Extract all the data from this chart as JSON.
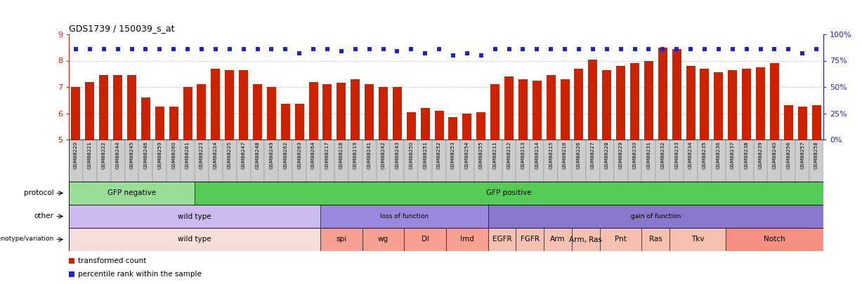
{
  "title": "GDS1739 / 150039_s_at",
  "sample_ids": [
    "GSM88220",
    "GSM88221",
    "GSM88222",
    "GSM88244",
    "GSM88245",
    "GSM88246",
    "GSM88259",
    "GSM88260",
    "GSM88261",
    "GSM88223",
    "GSM88224",
    "GSM88225",
    "GSM88247",
    "GSM88248",
    "GSM88249",
    "GSM88262",
    "GSM88263",
    "GSM88264",
    "GSM88217",
    "GSM88218",
    "GSM88219",
    "GSM88241",
    "GSM88242",
    "GSM88243",
    "GSM88250",
    "GSM88251",
    "GSM88252",
    "GSM88253",
    "GSM88254",
    "GSM88255",
    "GSM88211",
    "GSM88212",
    "GSM88213",
    "GSM88214",
    "GSM88215",
    "GSM88216",
    "GSM88226",
    "GSM88227",
    "GSM88228",
    "GSM88229",
    "GSM88230",
    "GSM88231",
    "GSM88232",
    "GSM88233",
    "GSM88234",
    "GSM88235",
    "GSM88236",
    "GSM88237",
    "GSM88238",
    "GSM88239",
    "GSM88240",
    "GSM88256",
    "GSM88257",
    "GSM88258"
  ],
  "bar_values": [
    7.0,
    7.2,
    7.45,
    7.45,
    7.45,
    6.6,
    6.25,
    6.25,
    7.0,
    7.1,
    7.7,
    7.65,
    7.65,
    7.1,
    7.0,
    6.35,
    6.35,
    7.2,
    7.1,
    7.15,
    7.3,
    7.1,
    7.0,
    7.0,
    6.05,
    6.2,
    6.1,
    5.85,
    6.0,
    6.05,
    7.1,
    7.4,
    7.3,
    7.25,
    7.45,
    7.3,
    7.7,
    8.05,
    7.65,
    7.8,
    7.9,
    8.0,
    8.5,
    8.45,
    7.8,
    7.7,
    7.55,
    7.65,
    7.7,
    7.75,
    7.9,
    6.3,
    6.25,
    6.3
  ],
  "percentile_values": [
    86,
    86,
    86,
    86,
    86,
    86,
    86,
    86,
    86,
    86,
    86,
    86,
    86,
    86,
    86,
    86,
    82,
    86,
    86,
    84,
    86,
    86,
    86,
    84,
    86,
    82,
    86,
    80,
    82,
    80,
    86,
    86,
    86,
    86,
    86,
    86,
    86,
    86,
    86,
    86,
    86,
    86,
    86,
    86,
    86,
    86,
    86,
    86,
    86,
    86,
    86,
    86,
    82,
    86
  ],
  "ylim_left": [
    5,
    9
  ],
  "ylim_right": [
    0,
    100
  ],
  "yticks_left": [
    5,
    6,
    7,
    8,
    9
  ],
  "yticks_right": [
    0,
    25,
    50,
    75,
    100
  ],
  "bar_color": "#cc2200",
  "marker_color": "#2222cc",
  "background_color": "#ffffff",
  "grid_color": "#999999",
  "xtick_bg_color": "#cccccc",
  "protocol_groups": [
    {
      "label": "GFP negative",
      "start": 0,
      "end": 9,
      "color": "#99dd99"
    },
    {
      "label": "GFP positive",
      "start": 9,
      "end": 54,
      "color": "#55cc55"
    }
  ],
  "other_groups": [
    {
      "label": "wild type",
      "start": 0,
      "end": 18,
      "color": "#ccbbee"
    },
    {
      "label": "loss of function",
      "start": 18,
      "end": 30,
      "color": "#9988dd"
    },
    {
      "label": "gain of function",
      "start": 30,
      "end": 54,
      "color": "#8877cc"
    }
  ],
  "genotype_groups": [
    {
      "label": "wild type",
      "start": 0,
      "end": 18,
      "color": "#f5ddd8"
    },
    {
      "label": "spi",
      "start": 18,
      "end": 21,
      "color": "#f5a090"
    },
    {
      "label": "wg",
      "start": 21,
      "end": 24,
      "color": "#f5a090"
    },
    {
      "label": "Dl",
      "start": 24,
      "end": 27,
      "color": "#f5a090"
    },
    {
      "label": "Imd",
      "start": 27,
      "end": 30,
      "color": "#f5a090"
    },
    {
      "label": "EGFR",
      "start": 30,
      "end": 32,
      "color": "#f5c0b0"
    },
    {
      "label": "FGFR",
      "start": 32,
      "end": 34,
      "color": "#f5c0b0"
    },
    {
      "label": "Arm",
      "start": 34,
      "end": 36,
      "color": "#f5c0b0"
    },
    {
      "label": "Arm, Ras",
      "start": 36,
      "end": 38,
      "color": "#f5c0b0"
    },
    {
      "label": "Pnt",
      "start": 38,
      "end": 41,
      "color": "#f5c0b0"
    },
    {
      "label": "Ras",
      "start": 41,
      "end": 43,
      "color": "#f5c0b0"
    },
    {
      "label": "Tkv",
      "start": 43,
      "end": 47,
      "color": "#f5c0b0"
    },
    {
      "label": "Notch",
      "start": 47,
      "end": 54,
      "color": "#f59080"
    }
  ],
  "legend_red": "transformed count",
  "legend_blue": "percentile rank within the sample"
}
